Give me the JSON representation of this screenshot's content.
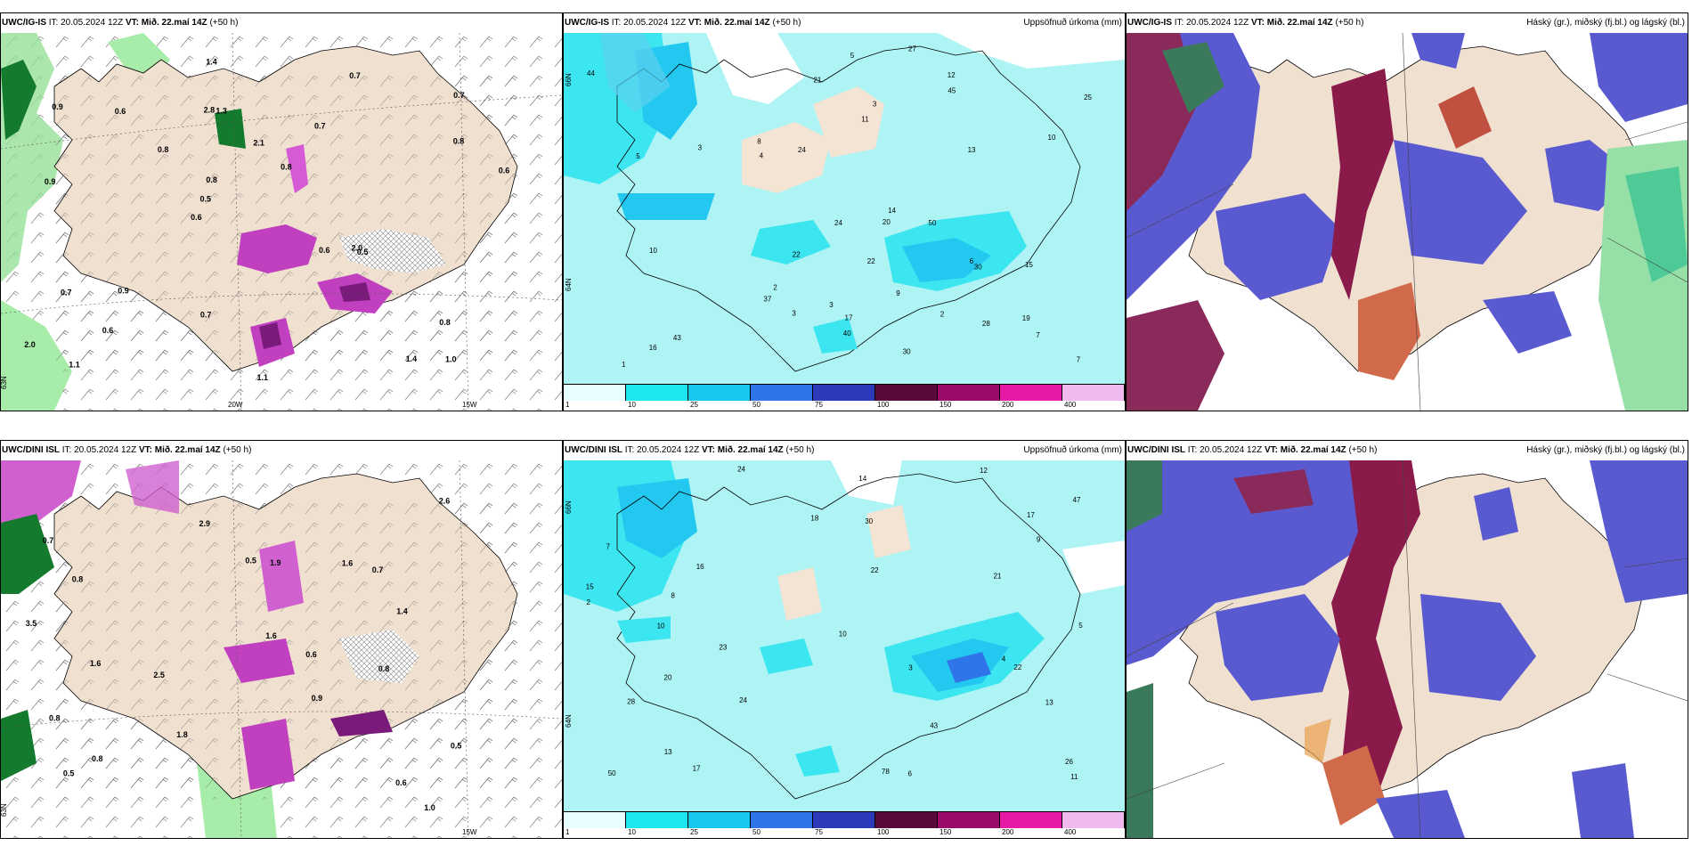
{
  "panels": [
    {
      "model": "UWC/IG-IS",
      "it": "IT: 20.05.2024 12Z",
      "vt": "VT: Mið. 22.maí 14Z",
      "lead": "(+50 h)",
      "title": ""
    },
    {
      "model": "UWC/IG-IS",
      "it": "IT: 20.05.2024 12Z",
      "vt": "VT: Mið. 22.maí 14Z",
      "lead": "(+50 h)",
      "title": "Uppsöfnuð úrkoma (mm)"
    },
    {
      "model": "UWC/IG-IS",
      "it": "IT: 20.05.2024 12Z",
      "vt": "VT: Mið. 22.maí 14Z",
      "lead": "(+50 h)",
      "title": "Háský (gr.), miðský (fj.bl.) og lágský (bl.)"
    },
    {
      "model": "UWC/DINI ISL",
      "it": "IT: 20.05.2024 12Z",
      "vt": "VT: Mið. 22.maí 14Z",
      "lead": "(+50 h)",
      "title": ""
    },
    {
      "model": "UWC/DINI ISL",
      "it": "IT: 20.05.2024 12Z",
      "vt": "VT: Mið. 22.maí 14Z",
      "lead": "(+50 h)",
      "title": "Uppsöfnuð úrkoma (mm)"
    },
    {
      "model": "UWC/DINI ISL",
      "it": "IT: 20.05.2024 12Z",
      "vt": "VT: Mið. 22.maí 14Z",
      "lead": "(+50 h)",
      "title": "Háský (gr.), miðský (fj.bl.) og lágský (bl.)"
    }
  ],
  "grid_labels": {
    "lon_20": "20W",
    "lon_15": "15W",
    "lat_65": "65N",
    "lat_64": "64N",
    "lat_66": "66N",
    "lat_645": "63N"
  },
  "colorbar": {
    "labels": [
      "1",
      "10",
      "25",
      "50",
      "75",
      "100",
      "150",
      "200",
      "400"
    ],
    "colors": [
      "#e8fdfd",
      "#1ee6ee",
      "#16c8ee",
      "#2f74e8",
      "#2a3ab8",
      "#5a0a3a",
      "#9a0a6a",
      "#e61aa6",
      "#f2b8f0"
    ]
  },
  "top_temp_values": [
    "1.0",
    "0.9",
    "0.7",
    "0.6",
    "0.7",
    "1.1",
    "2.8",
    "2.1",
    "0.7",
    "0.8",
    "2.0",
    "0.6",
    "1.3",
    "0.8",
    "0.5",
    "0.9",
    "1.4",
    "0.6",
    "0.6",
    "0.8",
    "0.5",
    "0.7",
    "0.8",
    "0.6",
    "0.7",
    "0.9",
    "1.4",
    "0.8",
    "2.0",
    "1.1"
  ],
  "bot_temp_values": [
    "1.0",
    "1.6",
    "0.9",
    "0.7",
    "0.5",
    "0.8",
    "0.8",
    "2.5",
    "0.7",
    "0.5",
    "1.6",
    "0.6",
    "1.8",
    "2.9",
    "0.6",
    "0.8",
    "0.8",
    "1.6",
    "3.5",
    "0.5",
    "2.6",
    "1.9",
    "1.4"
  ],
  "top_precip_values": [
    "16",
    "15",
    "14",
    "22",
    "21",
    "27",
    "19",
    "12",
    "28",
    "37",
    "7",
    "4",
    "3",
    "5",
    "2",
    "8",
    "6",
    "10",
    "24",
    "25",
    "44",
    "43",
    "40",
    "50",
    "30",
    "45",
    "24",
    "11",
    "10",
    "9",
    "7",
    "22",
    "3",
    "1",
    "20",
    "30",
    "17",
    "13",
    "5",
    "3",
    "3",
    "2"
  ],
  "bot_precip_values": [
    "13",
    "17",
    "16",
    "22",
    "21",
    "24",
    "28",
    "10",
    "23",
    "15",
    "24",
    "18",
    "26",
    "30",
    "13",
    "20",
    "22",
    "12",
    "50",
    "43",
    "78",
    "47",
    "17",
    "11",
    "10",
    "14",
    "8",
    "2",
    "5",
    "3",
    "9",
    "4",
    "6",
    "7"
  ]
}
